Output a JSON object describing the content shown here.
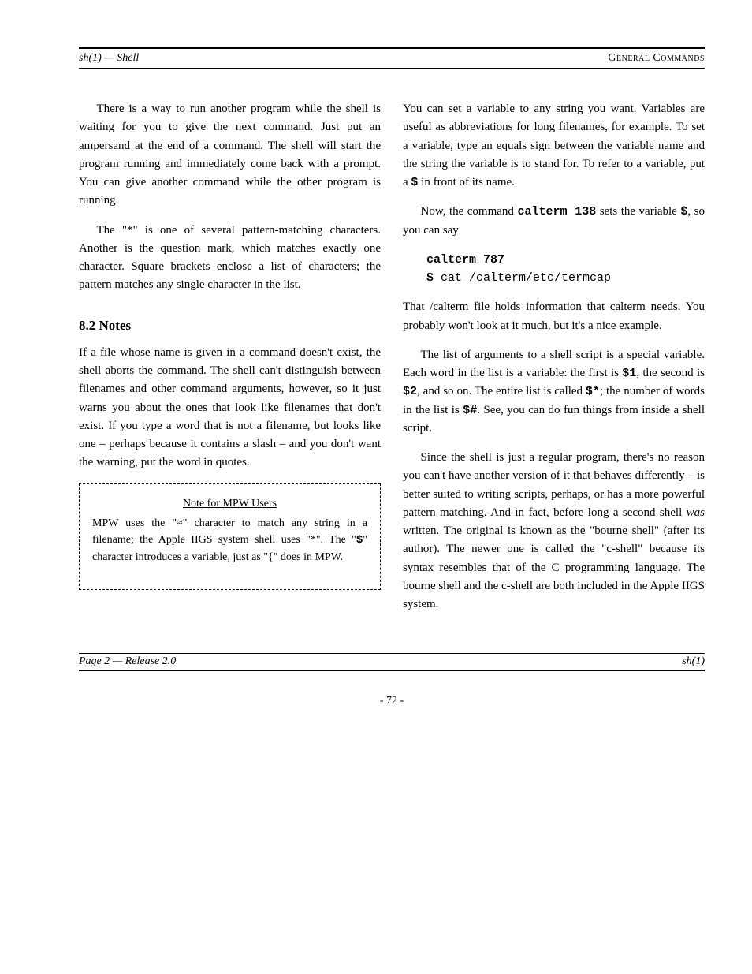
{
  "header": {
    "left_italic": "sh(1)",
    "left_rest": " — Shell",
    "right": "General Commands"
  },
  "left_col": {
    "p1": "There is a way to run another program while the shell is waiting for you to give the next command. Just put an ampersand at the end of a command. The shell will start the program running and immediately come back with a prompt. You can give another command while the other program is running.",
    "p2": "The \"*\" is one of several pattern-matching characters. Another is the question mark, which matches exactly one character. Square brackets enclose a list of characters; the pattern matches any single character in the list.",
    "section_title": "8.2  Notes",
    "p3_a": "If a file whose name is given in a command doesn't exist, the shell aborts the command. The shell can't distinguish between filenames and other command arguments, however, so it just warns you about the ones that look like filenames that don't exist. If you type a word that is not a filename, but looks like one – perhaps because it contains a slash – and you don't want the warning, put the word in quotes.",
    "note_heading_normal": "Note for MPW Users",
    "note_body_a": "MPW uses the \"≈\" character to match any string in a filename; the Apple IIGS system shell uses \"*\". The \"",
    "note_body_dollar": "$",
    "note_body_b": "\" character introduces a variable, just as \"{\" does in MPW."
  },
  "right_col": {
    "p1_a": "You can set a variable to any string you want. Variables are useful as abbreviations for long filenames, for example. To set a variable, type an equals sign between the variable name and the string the variable is to stand for. To refer to a variable, put a ",
    "p1_dollar": "$",
    "p1_b": " in front of its name.",
    "p2_a": "Now, the command ",
    "p2_cmd": "calterm 138",
    "p2_b": " sets the variable ",
    "p2_dollar": "$",
    "p2_c": ", so you can say",
    "code1": "calterm 787",
    "code2_dollar": "$",
    "code2_rest": " cat /calterm/etc/termcap",
    "p3": "That /calterm file holds information that calterm needs. You probably won't look at it much, but it's a nice example.",
    "p4_a": "The list of arguments to a shell script is a special variable. Each word in the list is a variable: the first is ",
    "p4_v1": "$1",
    "p4_b": ", the second is ",
    "p4_v2": "$2",
    "p4_c": ", and so on. The entire list is called ",
    "p4_v3": "$*",
    "p4_d": "; the number of words in the list is ",
    "p4_v4": "$#",
    "p4_e": ". See, you can do fun things from inside a shell script.",
    "p5_a": "Since the shell is just a regular program, there's no reason you can't have another version of it that behaves differently – is better suited to writing scripts, perhaps, or has a more powerful pattern matching. And in fact, before long a second shell ",
    "p5_it": "was",
    "p5_b": " written. The original is known as the \"bourne shell\" (after its author). The newer one is called the \"c-shell\" because its syntax resembles that of the C programming language. The bourne shell and the c-shell are both included in the Apple IIGS system."
  },
  "footer": {
    "left_it": "Page 2",
    "left_rest": " — Release 2.0",
    "right": "sh(1)"
  },
  "page_number": "- 72 -"
}
